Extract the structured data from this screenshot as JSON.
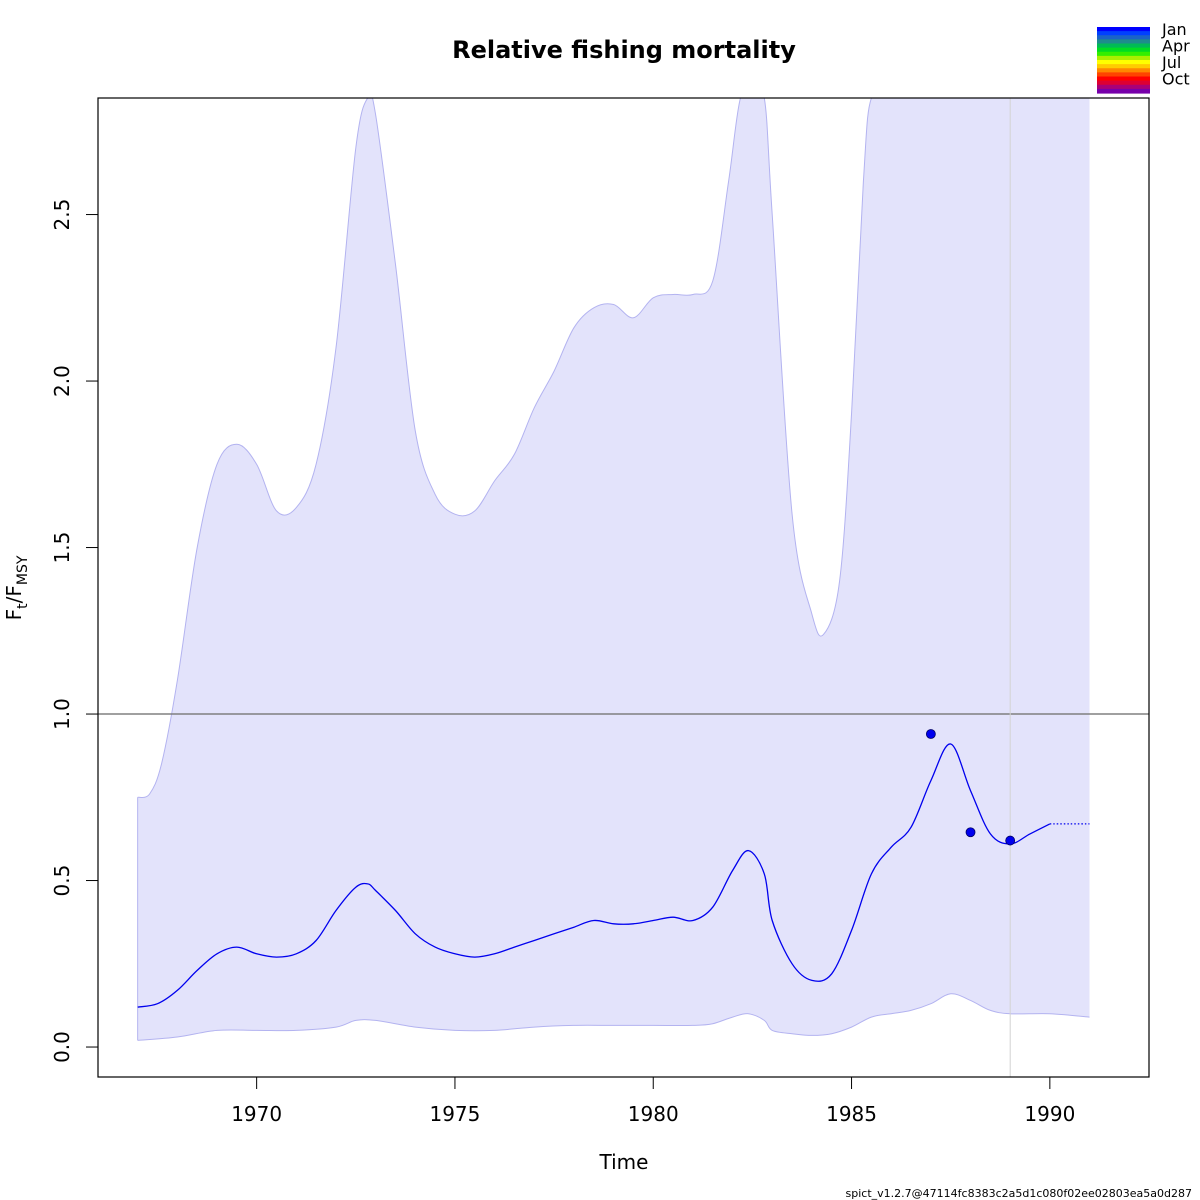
{
  "chart_data": {
    "type": "line",
    "title": "Relative fishing mortality",
    "xlabel": "Time",
    "ylabel": {
      "main": "F",
      "sub1": "t",
      "sep": "/F",
      "sub2": "MSY"
    },
    "xlim": [
      1966,
      1992.5
    ],
    "ylim": [
      -0.09,
      2.85
    ],
    "x_ticks": [
      1970,
      1975,
      1980,
      1985,
      1990
    ],
    "y_ticks": [
      0.0,
      0.5,
      1.0,
      1.5,
      2.0,
      2.5
    ],
    "x_tick_labels": [
      "1970",
      "1975",
      "1980",
      "1985",
      "1990"
    ],
    "y_tick_labels": [
      "0.0",
      "0.5",
      "1.0",
      "1.5",
      "2.0",
      "2.5"
    ],
    "reference_line": {
      "y": 1.0,
      "color": "#808080"
    },
    "vertical_line": {
      "x": 1989.0,
      "color": "#d3d3d3"
    },
    "band_color": "#e3e3fb",
    "band_edge_color": "#b3b3f0",
    "line_color": "#0000ee",
    "point_color": "#0000ee",
    "series": [
      {
        "role": "estimate",
        "x": [
          1967.0,
          1967.5,
          1968.0,
          1968.5,
          1969.0,
          1969.5,
          1970.0,
          1970.5,
          1971.0,
          1971.5,
          1972.0,
          1972.5,
          1972.8,
          1973.0,
          1973.5,
          1974.0,
          1974.5,
          1975.0,
          1975.5,
          1976.0,
          1976.5,
          1977.0,
          1977.5,
          1978.0,
          1978.5,
          1979.0,
          1979.5,
          1980.0,
          1980.5,
          1981.0,
          1981.5,
          1982.0,
          1982.4,
          1982.8,
          1983.0,
          1983.5,
          1984.0,
          1984.5,
          1985.0,
          1985.5,
          1986.0,
          1986.5,
          1987.0,
          1987.5,
          1988.0,
          1988.5,
          1989.0,
          1989.5,
          1990.0
        ],
        "y": [
          0.12,
          0.13,
          0.17,
          0.23,
          0.28,
          0.3,
          0.28,
          0.27,
          0.28,
          0.32,
          0.41,
          0.48,
          0.49,
          0.47,
          0.41,
          0.34,
          0.3,
          0.28,
          0.27,
          0.28,
          0.3,
          0.32,
          0.34,
          0.36,
          0.38,
          0.37,
          0.37,
          0.38,
          0.39,
          0.38,
          0.42,
          0.53,
          0.59,
          0.52,
          0.38,
          0.25,
          0.2,
          0.22,
          0.35,
          0.52,
          0.6,
          0.66,
          0.8,
          0.91,
          0.77,
          0.64,
          0.61,
          0.64,
          0.67
        ]
      },
      {
        "role": "forecast",
        "x": [
          1990.0,
          1990.5,
          1991.0
        ],
        "y": [
          0.67,
          0.67,
          0.67
        ]
      },
      {
        "role": "upper_ci",
        "x": [
          1967.0,
          1967.3,
          1967.6,
          1968.0,
          1968.5,
          1969.0,
          1969.5,
          1970.0,
          1970.5,
          1971.0,
          1971.5,
          1972.0,
          1972.5,
          1972.8,
          1973.0,
          1973.5,
          1974.0,
          1974.5,
          1975.0,
          1975.5,
          1976.0,
          1976.5,
          1977.0,
          1977.5,
          1978.0,
          1978.5,
          1979.0,
          1979.5,
          1980.0,
          1980.5,
          1981.0,
          1981.5,
          1981.9,
          1982.2,
          1982.5,
          1982.8,
          1983.0,
          1983.5,
          1984.0,
          1984.3,
          1984.7,
          1985.0,
          1985.3,
          1985.5,
          1986.0,
          1987.0,
          1988.0,
          1989.0,
          1990.0,
          1991.0
        ],
        "y": [
          0.75,
          0.76,
          0.85,
          1.1,
          1.5,
          1.75,
          1.81,
          1.75,
          1.61,
          1.62,
          1.75,
          2.1,
          2.7,
          2.85,
          2.8,
          2.35,
          1.85,
          1.66,
          1.6,
          1.61,
          1.7,
          1.78,
          1.92,
          2.03,
          2.16,
          2.22,
          2.23,
          2.19,
          2.25,
          2.26,
          2.26,
          2.3,
          2.6,
          2.85,
          2.85,
          2.85,
          2.5,
          1.6,
          1.3,
          1.24,
          1.4,
          1.9,
          2.6,
          2.85,
          2.85,
          2.85,
          2.85,
          2.85,
          2.85,
          2.85
        ]
      },
      {
        "role": "lower_ci",
        "x": [
          1967.0,
          1968.0,
          1969.0,
          1970.0,
          1971.0,
          1972.0,
          1972.5,
          1973.0,
          1974.0,
          1975.0,
          1976.0,
          1977.0,
          1978.0,
          1979.0,
          1980.0,
          1981.0,
          1981.5,
          1982.0,
          1982.4,
          1982.8,
          1983.0,
          1983.5,
          1984.0,
          1984.5,
          1985.0,
          1985.5,
          1986.0,
          1986.5,
          1987.0,
          1987.5,
          1988.0,
          1988.5,
          1989.0,
          1990.0,
          1991.0
        ],
        "y": [
          0.02,
          0.03,
          0.05,
          0.05,
          0.05,
          0.06,
          0.08,
          0.08,
          0.06,
          0.05,
          0.05,
          0.06,
          0.065,
          0.065,
          0.065,
          0.065,
          0.07,
          0.09,
          0.1,
          0.08,
          0.05,
          0.04,
          0.035,
          0.04,
          0.06,
          0.09,
          0.1,
          0.11,
          0.13,
          0.16,
          0.14,
          0.11,
          0.1,
          0.1,
          0.09
        ]
      }
    ],
    "observations": {
      "x": [
        1987.0,
        1988.0,
        1989.0
      ],
      "y": [
        0.94,
        0.645,
        0.62
      ]
    },
    "legend": {
      "placement": "top-right outside",
      "labels": [
        "Jan",
        "Apr",
        "Jul",
        "Oct"
      ],
      "colors": [
        "#0000ff",
        "#0040ff",
        "#1a63c8",
        "#1e8c8c",
        "#00bb55",
        "#00dd22",
        "#33ee00",
        "#aaee00",
        "#ffff00",
        "#ffcc00",
        "#ff8800",
        "#ff4400",
        "#ff0000",
        "#dd0033",
        "#aa0077",
        "#7700aa"
      ]
    },
    "footer": "spict_v1.2.7@47114fc8383c2a5d1c080f02ee02803ea5a0d287"
  }
}
